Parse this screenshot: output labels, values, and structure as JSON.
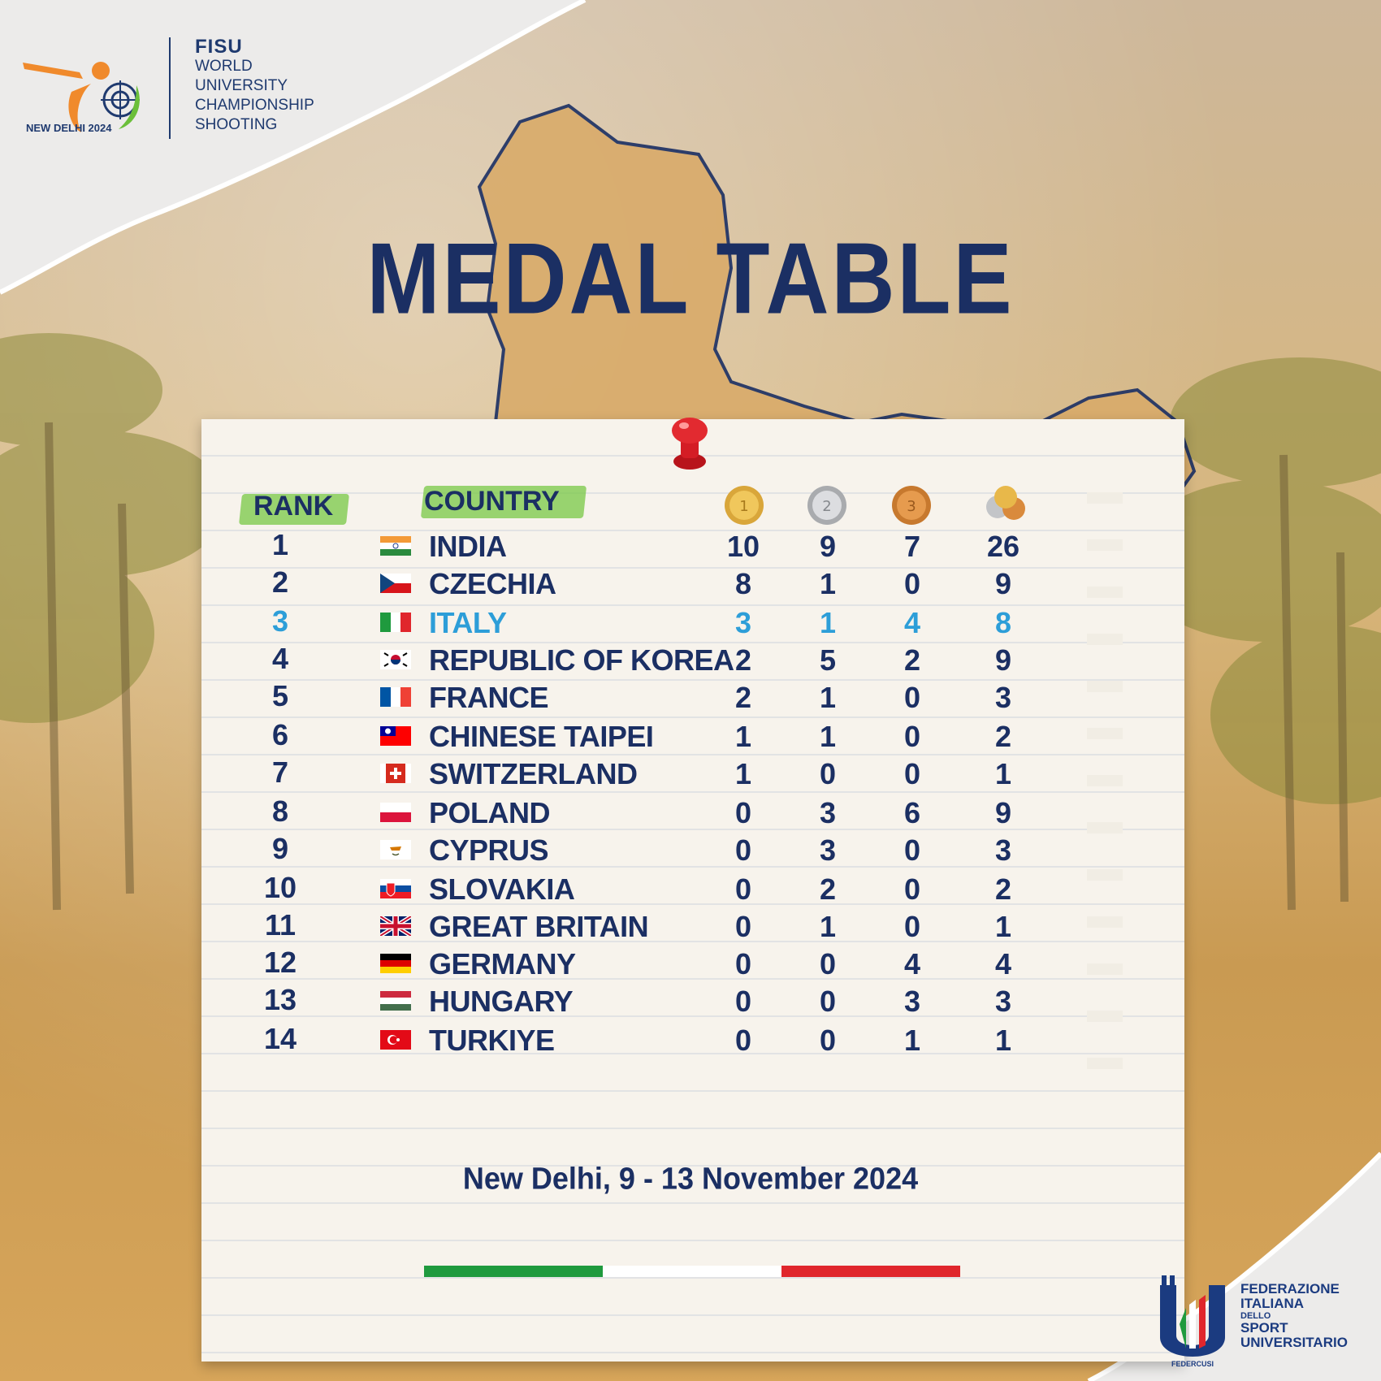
{
  "header": {
    "year_label": "NEW DELHI 2024",
    "brand": "FISU",
    "lines": [
      "WORLD",
      "UNIVERSITY",
      "CHAMPIONSHIP",
      "SHOOTING"
    ]
  },
  "title": "MEDAL TABLE",
  "table": {
    "rank_header": "RANK",
    "country_header": "COUNTRY",
    "columns": [
      "gold-medal-icon",
      "silver-medal-icon",
      "bronze-medal-icon",
      "total-medals-icon"
    ],
    "highlight_color": "#2d9ed8",
    "rows": [
      {
        "rank": "1",
        "country": "INDIA",
        "gold": "10",
        "silver": "9",
        "bronze": "7",
        "total": "26",
        "flag": "india-flag-icon"
      },
      {
        "rank": "2",
        "country": "CZECHIA",
        "gold": "8",
        "silver": "1",
        "bronze": "0",
        "total": "9",
        "flag": "czechia-flag-icon"
      },
      {
        "rank": "3",
        "country": "ITALY",
        "gold": "3",
        "silver": "1",
        "bronze": "4",
        "total": "8",
        "flag": "italy-flag-icon",
        "highlight": true
      },
      {
        "rank": "4",
        "country": "REPUBLIC OF KOREA",
        "gold": "2",
        "silver": "5",
        "bronze": "2",
        "total": "9",
        "flag": "korea-flag-icon"
      },
      {
        "rank": "5",
        "country": "FRANCE",
        "gold": "2",
        "silver": "1",
        "bronze": "0",
        "total": "3",
        "flag": "france-flag-icon"
      },
      {
        "rank": "6",
        "country": "CHINESE TAIPEI",
        "gold": "1",
        "silver": "1",
        "bronze": "0",
        "total": "2",
        "flag": "chinese-taipei-flag-icon"
      },
      {
        "rank": "7",
        "country": "SWITZERLAND",
        "gold": "1",
        "silver": "0",
        "bronze": "0",
        "total": "1",
        "flag": "switzerland-flag-icon"
      },
      {
        "rank": "8",
        "country": "POLAND",
        "gold": "0",
        "silver": "3",
        "bronze": "6",
        "total": "9",
        "flag": "poland-flag-icon"
      },
      {
        "rank": "9",
        "country": "CYPRUS",
        "gold": "0",
        "silver": "3",
        "bronze": "0",
        "total": "3",
        "flag": "cyprus-flag-icon"
      },
      {
        "rank": "10",
        "country": "SLOVAKIA",
        "gold": "0",
        "silver": "2",
        "bronze": "0",
        "total": "2",
        "flag": "slovakia-flag-icon"
      },
      {
        "rank": "11",
        "country": "GREAT BRITAIN",
        "gold": "0",
        "silver": "1",
        "bronze": "0",
        "total": "1",
        "flag": "great-britain-flag-icon"
      },
      {
        "rank": "12",
        "country": "GERMANY",
        "gold": "0",
        "silver": "0",
        "bronze": "4",
        "total": "4",
        "flag": "germany-flag-icon"
      },
      {
        "rank": "13",
        "country": "HUNGARY",
        "gold": "0",
        "silver": "0",
        "bronze": "3",
        "total": "3",
        "flag": "hungary-flag-icon"
      },
      {
        "rank": "14",
        "country": "TURKIYE",
        "gold": "0",
        "silver": "0",
        "bronze": "1",
        "total": "1",
        "flag": "turkiye-flag-icon"
      }
    ]
  },
  "date": "New Delhi, 9 - 13 November 2024",
  "tricolor": [
    "#1f9a3e",
    "#ffffff",
    "#e0262c"
  ],
  "federation": {
    "lines": [
      "FEDERAZIONE",
      "ITALIANA",
      "DELLO",
      "SPORT",
      "UNIVERSITARIO"
    ],
    "logo_text": "FEDERCUSI"
  }
}
